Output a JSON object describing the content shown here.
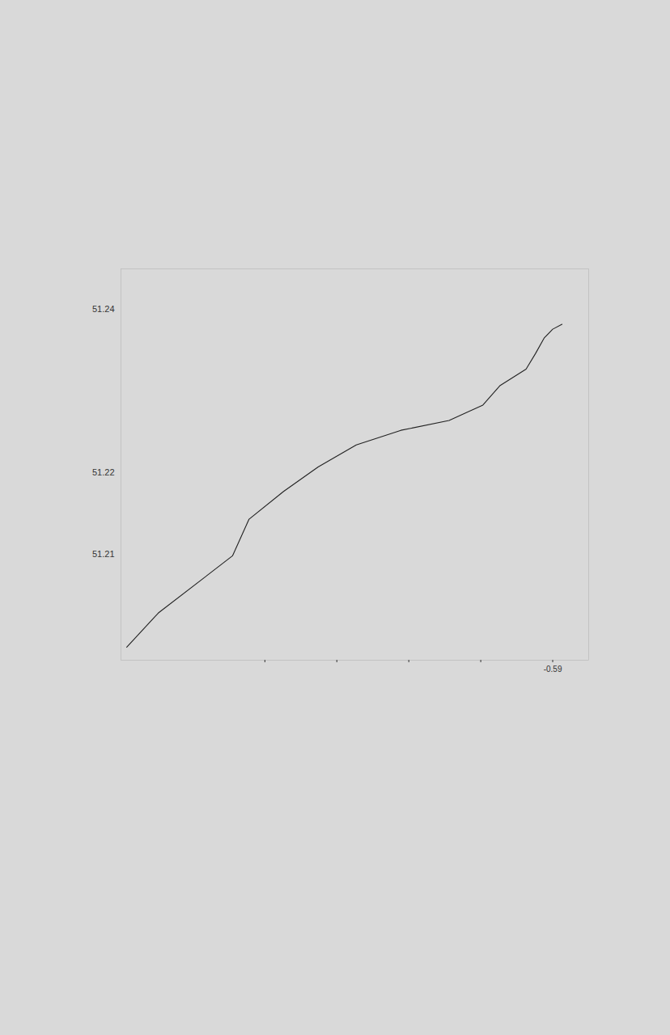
{
  "chart_data": {
    "type": "line",
    "x": [
      -0.6492,
      -0.6448,
      -0.6345,
      -0.6322,
      -0.6274,
      -0.6226,
      -0.6173,
      -0.6111,
      -0.6044,
      -0.5997,
      -0.5973,
      -0.5937,
      -0.5924,
      -0.5912,
      -0.59,
      -0.5887
    ],
    "values": [
      51.1986,
      51.2028,
      51.2098,
      51.2143,
      51.2177,
      51.2207,
      51.2234,
      51.2252,
      51.2264,
      51.2283,
      51.2307,
      51.2327,
      51.2346,
      51.2365,
      51.2376,
      51.2382
    ],
    "color": "#222222",
    "xlim": [
      -0.65,
      -0.585
    ],
    "ylim": [
      51.197,
      51.245
    ],
    "xticks": [
      {
        "value": -0.63,
        "label": null
      },
      {
        "value": -0.62,
        "label": null
      },
      {
        "value": -0.61,
        "label": null
      },
      {
        "value": -0.6,
        "label": null
      },
      -0.59
    ],
    "yticks": [
      51.21,
      51.22,
      51.24
    ],
    "grid": false
  }
}
